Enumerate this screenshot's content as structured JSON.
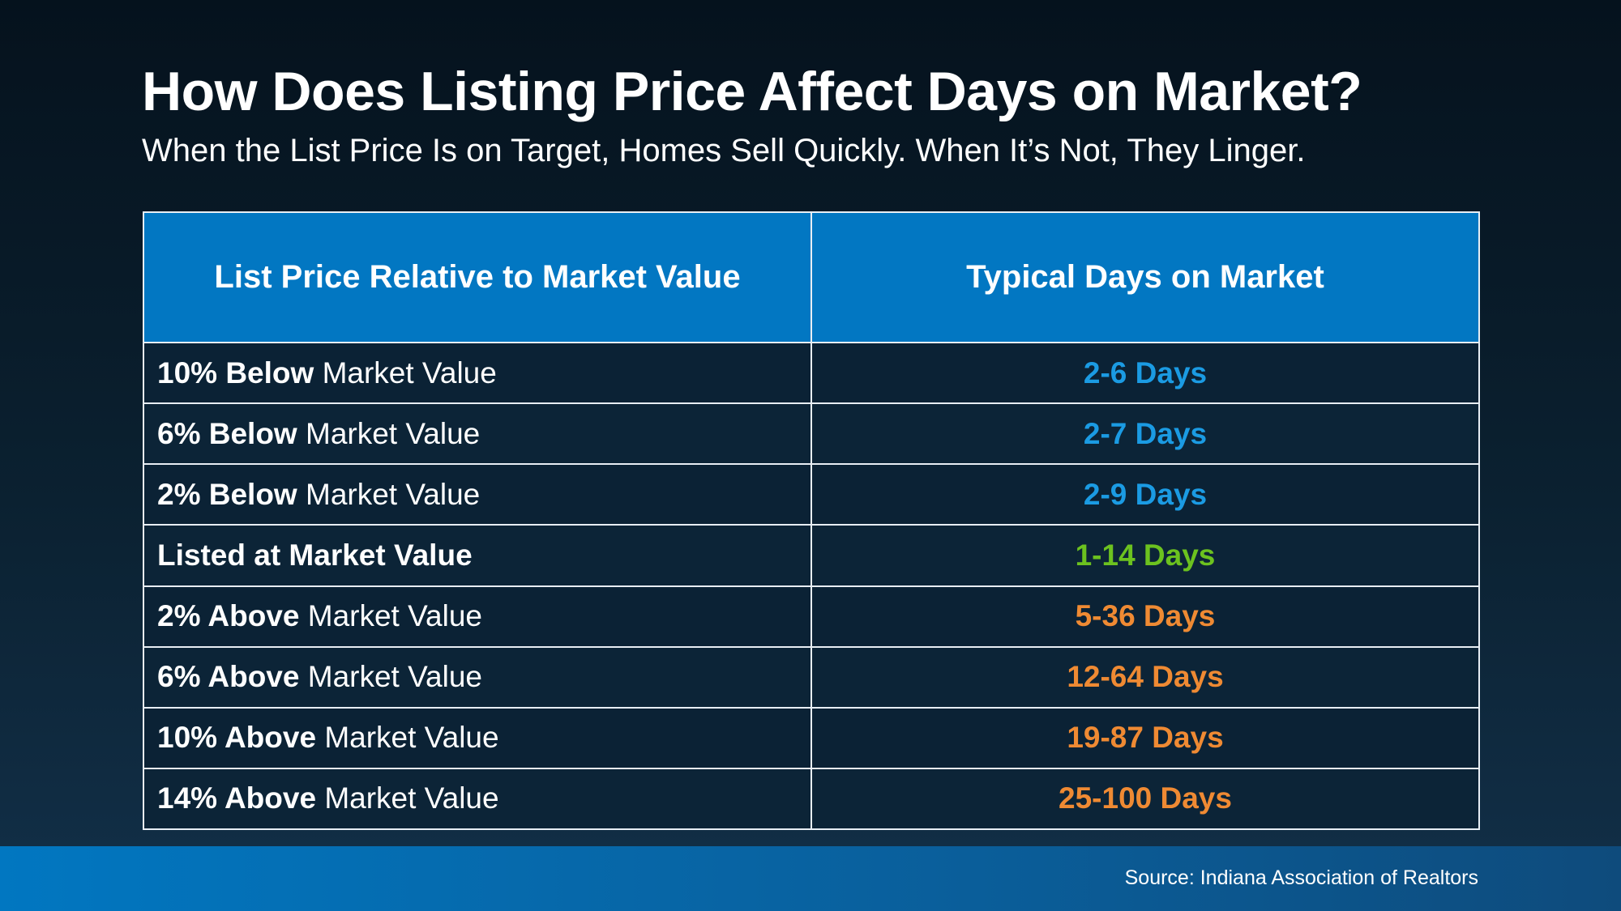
{
  "title": "How Does Listing Price Affect Days on Market?",
  "subtitle": "When the List Price Is on Target, Homes Sell Quickly. When It’s Not, They Linger.",
  "colors": {
    "header_bg": "#0277c2",
    "below": "#1b9be3",
    "at": "#6cc21f",
    "above": "#ef8a33"
  },
  "chart_data": {
    "type": "table",
    "columns": [
      "List Price Relative to Market Value",
      "Typical Days on Market"
    ],
    "rows": [
      {
        "bold": "10% Below",
        "rest": " Market Value",
        "days": "2-6 Days",
        "tone": "below"
      },
      {
        "bold": "6% Below",
        "rest": " Market Value",
        "days": "2-7 Days",
        "tone": "below"
      },
      {
        "bold": "2% Below",
        "rest": " Market Value",
        "days": "2-9 Days",
        "tone": "below"
      },
      {
        "bold": "Listed at Market Value",
        "rest": "",
        "days": "1-14 Days",
        "tone": "at"
      },
      {
        "bold": "2% Above",
        "rest": " Market Value",
        "days": "5-36 Days",
        "tone": "above"
      },
      {
        "bold": "6% Above",
        "rest": " Market Value",
        "days": "12-64 Days",
        "tone": "above"
      },
      {
        "bold": "10% Above",
        "rest": " Market Value",
        "days": "19-87 Days",
        "tone": "above"
      },
      {
        "bold": "14% Above",
        "rest": " Market Value",
        "days": "25-100 Days",
        "tone": "above"
      }
    ]
  },
  "footer": {
    "source": "Source: Indiana Association of Realtors"
  }
}
